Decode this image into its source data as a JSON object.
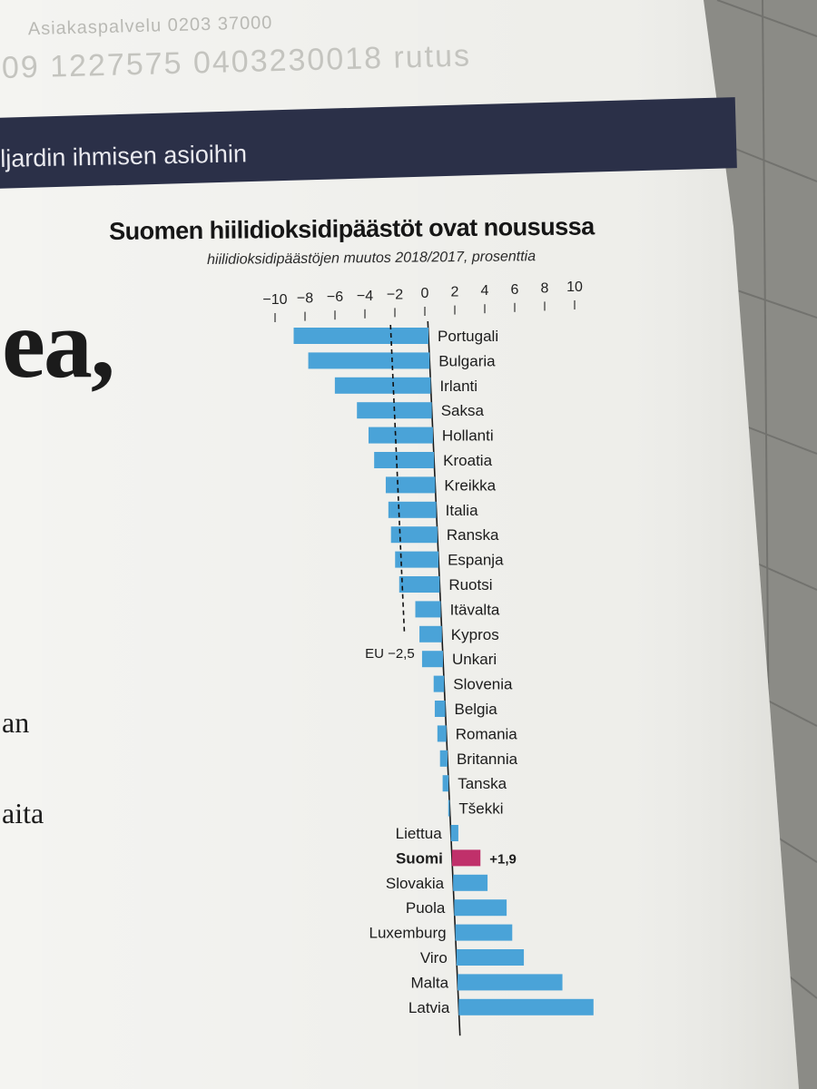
{
  "page": {
    "masthead_line1": "Asiakaspalvelu 0203 37000",
    "masthead_line2": "09 1227575   0403230018 rutus",
    "section_banner": "ljardin ihmisen asioihin",
    "side_headline": "ea,",
    "side_fragment_1": "an",
    "side_fragment_2": "aita"
  },
  "chart_data": {
    "type": "bar",
    "orientation": "horizontal",
    "title": "Suomen hiilidioksidipäästöt ovat nousussa",
    "subtitle": "hiilidioksidipäästöjen muutos 2018/2017, prosenttia",
    "xlim": [
      -10,
      10
    ],
    "xticks": [
      -10,
      -8,
      -6,
      -4,
      -2,
      0,
      2,
      4,
      6,
      8,
      10
    ],
    "xtick_labels": [
      "−10",
      "−8",
      "−6",
      "−4",
      "−2",
      "0",
      "2",
      "4",
      "6",
      "8",
      "10"
    ],
    "categories": [
      "Portugali",
      "Bulgaria",
      "Irlanti",
      "Saksa",
      "Hollanti",
      "Kroatia",
      "Kreikka",
      "Italia",
      "Ranska",
      "Espanja",
      "Ruotsi",
      "Itävalta",
      "Kypros",
      "Unkari",
      "Slovenia",
      "Belgia",
      "Romania",
      "Britannia",
      "Tanska",
      "Tšekki",
      "Liettua",
      "Suomi",
      "Slovakia",
      "Puola",
      "Luxemburg",
      "Viro",
      "Malta",
      "Latvia"
    ],
    "values": [
      -9.0,
      -8.1,
      -6.4,
      -5.0,
      -4.3,
      -4.0,
      -3.3,
      -3.2,
      -3.1,
      -2.9,
      -2.7,
      -1.7,
      -1.5,
      -1.4,
      -0.7,
      -0.7,
      -0.6,
      -0.5,
      -0.4,
      -0.1,
      0.5,
      1.9,
      2.3,
      3.5,
      3.8,
      4.5,
      7.0,
      9.0
    ],
    "highlight": {
      "category": "Suomi",
      "label": "+1,9",
      "color": "#c0306a"
    },
    "reference_line": {
      "value": -2.5,
      "label": "EU −2,5",
      "style": "dashed"
    },
    "bar_color": "#4aa3d8",
    "grid": false,
    "legend": "none"
  }
}
